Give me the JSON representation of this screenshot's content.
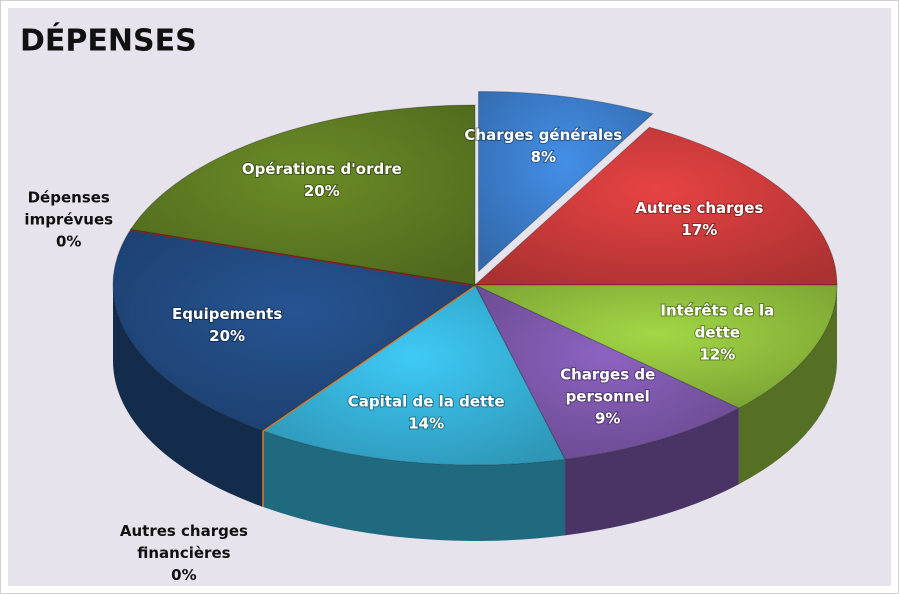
{
  "chart_data": {
    "type": "pie3d",
    "title": "DÉPENSES",
    "categories": [
      "Charges générales",
      "Autres charges",
      "Intérêts de la dette",
      "Charges de personnel",
      "Capital de la dette",
      "Autres charges financières",
      "Equipements",
      "Dépenses imprévues",
      "Opérations d'ordre"
    ],
    "values": [
      8,
      17,
      12,
      9,
      14,
      0,
      20,
      0,
      20
    ],
    "value_labels": [
      "8%",
      "17%",
      "12%",
      "9%",
      "14%",
      "0%",
      "20%",
      "0%",
      "20%"
    ],
    "colors": [
      "#3b7cc9",
      "#c93a3a",
      "#8dbb3c",
      "#7b56a8",
      "#36b0d6",
      "#e07a22",
      "#21497f",
      "#8a2323",
      "#5d7a22"
    ]
  }
}
